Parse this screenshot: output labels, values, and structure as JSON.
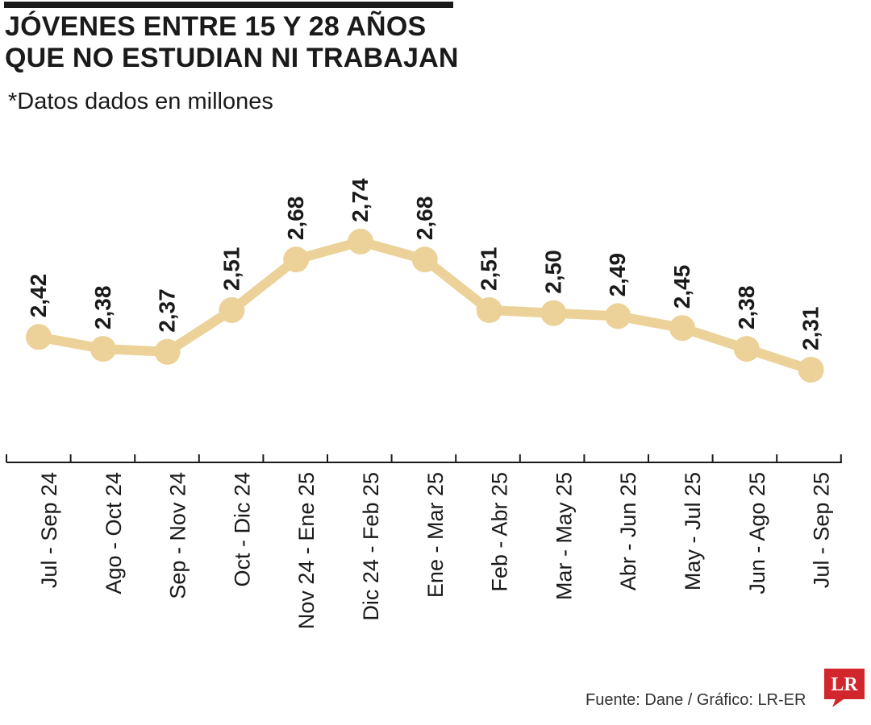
{
  "header": {
    "title_line1": "JÓVENES ENTRE 15 Y 28 AÑOS",
    "title_line2": "QUE NO ESTUDIAN NI TRABAJAN",
    "subtitle": "*Datos dados en millones"
  },
  "footer": {
    "source": "Fuente: Dane / Gráfico: LR-ER",
    "logo_text": "LR"
  },
  "colors": {
    "line": "#ecd198",
    "marker": "#ecd198",
    "text": "#1a1a1a",
    "logo": "#d0262c"
  },
  "chart_data": {
    "type": "line",
    "categories": [
      "Jul - Sep 24",
      "Ago - Oct 24",
      "Sep - Nov 24",
      "Oct - Dic 24",
      "Nov 24 - Ene 25",
      "Dic 24 - Feb 25",
      "Ene - Mar 25",
      "Feb - Abr 25",
      "Mar - May 25",
      "Abr - Jun 25",
      "May - Jul 25",
      "Jun - Ago 25",
      "Jul - Sep 25"
    ],
    "values": [
      2.42,
      2.38,
      2.37,
      2.51,
      2.68,
      2.74,
      2.68,
      2.51,
      2.5,
      2.49,
      2.45,
      2.38,
      2.31
    ],
    "value_labels": [
      "2,42",
      "2,38",
      "2,37",
      "2,51",
      "2,68",
      "2,74",
      "2,68",
      "2,51",
      "2,50",
      "2,49",
      "2,45",
      "2,38",
      "2,31"
    ],
    "title": "JÓVENES ENTRE 15 Y 28 AÑOS QUE NO ESTUDIAN NI TRABAJAN",
    "subtitle": "*Datos dados en millones",
    "xlabel": "",
    "ylabel": "",
    "grid": false,
    "legend": "none"
  }
}
